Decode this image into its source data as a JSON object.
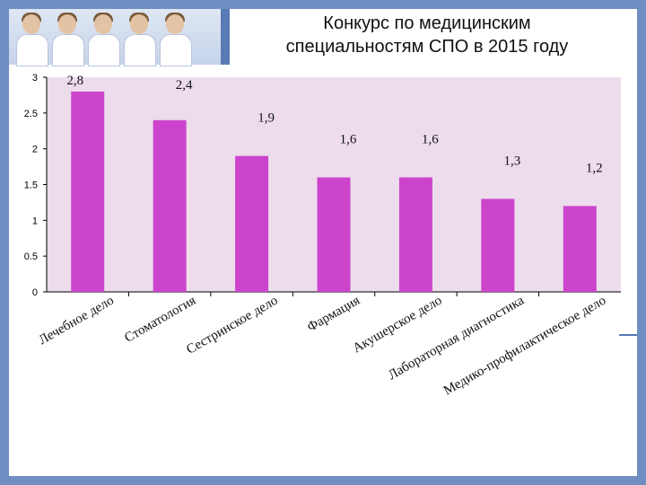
{
  "slide": {
    "title_line1": "Конкурс по медицинским",
    "title_line2": "специальностям СПО в 2015 году"
  },
  "colors": {
    "bar": "#cc44cc",
    "plot_background": "#ecdcec",
    "frame": "#6f8ec2"
  },
  "chart_data": {
    "type": "bar",
    "title": "",
    "xlabel": "",
    "ylabel": "",
    "ylim": [
      0,
      3
    ],
    "yticks": [
      0,
      0.5,
      1,
      1.5,
      2,
      2.5,
      3
    ],
    "ytick_labels": [
      "0",
      "0.5",
      "1",
      "1.5",
      "2",
      "2.5",
      "3"
    ],
    "grid": false,
    "legend": "none",
    "categories": [
      "Лечебное дело",
      "Стоматология",
      "Сестринское дело",
      "Фармация",
      "Акушерское дело",
      "Лабораторная диагностика",
      "Медико-профилактическое дело"
    ],
    "values": [
      2.8,
      2.4,
      1.9,
      1.6,
      1.6,
      1.3,
      1.2
    ],
    "data_labels": [
      "2,8",
      "2,4",
      "1,9",
      "1,6",
      "1,6",
      "1,3",
      "1,2"
    ]
  }
}
